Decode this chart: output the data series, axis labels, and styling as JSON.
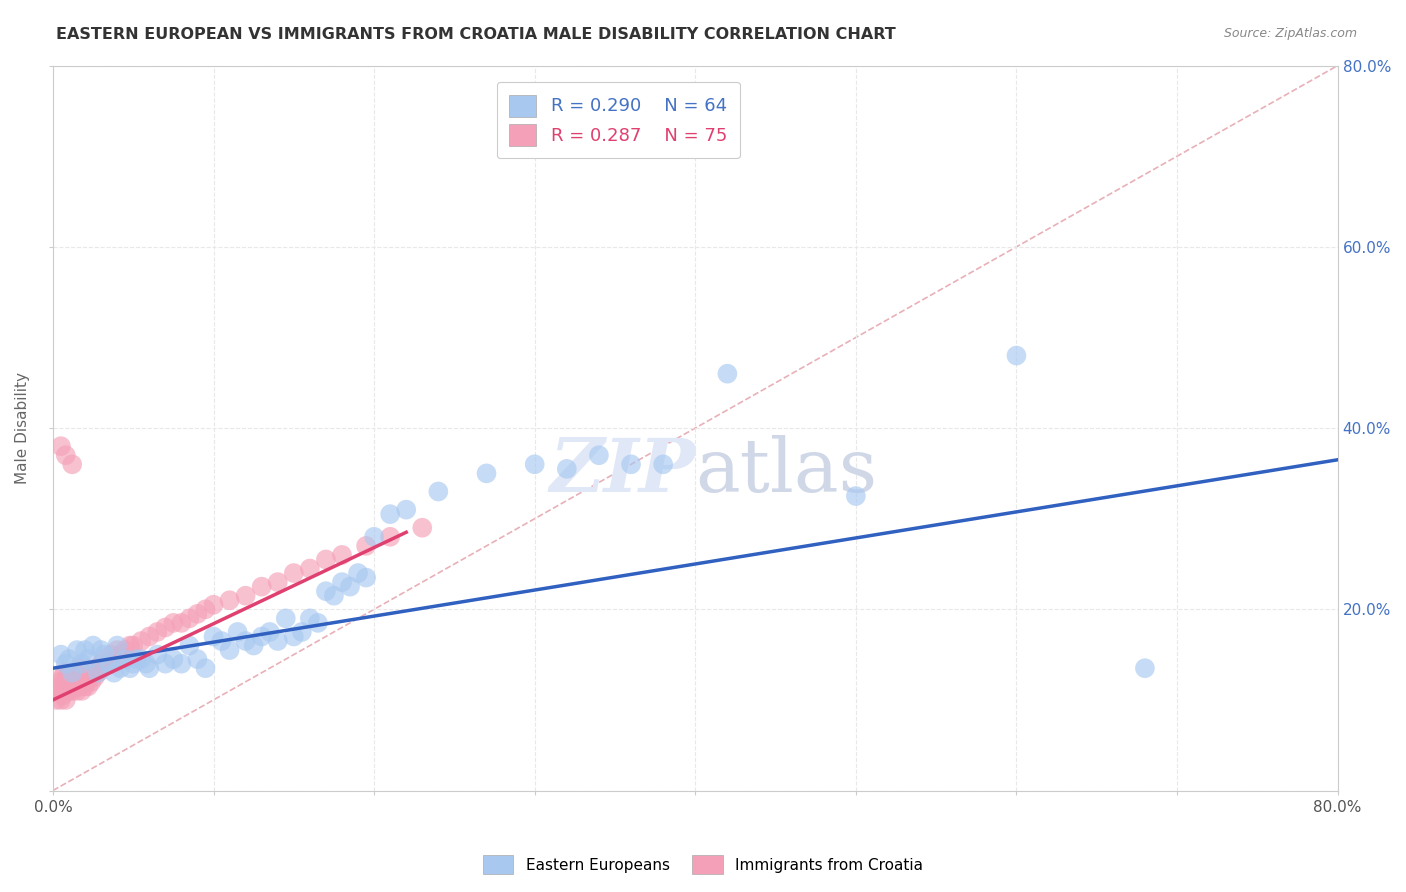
{
  "title": "EASTERN EUROPEAN VS IMMIGRANTS FROM CROATIA MALE DISABILITY CORRELATION CHART",
  "source": "Source: ZipAtlas.com",
  "ylabel": "Male Disability",
  "xlim": [
    0.0,
    0.8
  ],
  "ylim": [
    0.0,
    0.8
  ],
  "legend_blue_r": "R = 0.290",
  "legend_blue_n": "N = 64",
  "legend_pink_r": "R = 0.287",
  "legend_pink_n": "N = 75",
  "blue_color": "#a8c8f0",
  "pink_color": "#f4a0b8",
  "blue_line_color": "#3060c0",
  "pink_line_color": "#e04070",
  "ref_line_color": "#d0a0a8",
  "background_color": "#ffffff",
  "grid_color": "#e8e8e8",
  "blue_scatter_x": [
    0.005,
    0.008,
    0.01,
    0.012,
    0.015,
    0.018,
    0.02,
    0.022,
    0.025,
    0.028,
    0.03,
    0.032,
    0.035,
    0.038,
    0.04,
    0.042,
    0.045,
    0.048,
    0.05,
    0.052,
    0.055,
    0.058,
    0.06,
    0.065,
    0.07,
    0.075,
    0.08,
    0.085,
    0.09,
    0.095,
    0.1,
    0.105,
    0.11,
    0.115,
    0.12,
    0.125,
    0.13,
    0.135,
    0.14,
    0.145,
    0.15,
    0.155,
    0.16,
    0.165,
    0.17,
    0.175,
    0.18,
    0.185,
    0.19,
    0.195,
    0.2,
    0.21,
    0.22,
    0.24,
    0.27,
    0.3,
    0.32,
    0.34,
    0.36,
    0.38,
    0.42,
    0.5,
    0.6,
    0.68
  ],
  "blue_scatter_y": [
    0.15,
    0.14,
    0.145,
    0.13,
    0.155,
    0.14,
    0.155,
    0.145,
    0.16,
    0.13,
    0.155,
    0.15,
    0.14,
    0.13,
    0.16,
    0.135,
    0.145,
    0.135,
    0.14,
    0.145,
    0.145,
    0.14,
    0.135,
    0.15,
    0.14,
    0.145,
    0.14,
    0.16,
    0.145,
    0.135,
    0.17,
    0.165,
    0.155,
    0.175,
    0.165,
    0.16,
    0.17,
    0.175,
    0.165,
    0.19,
    0.17,
    0.175,
    0.19,
    0.185,
    0.22,
    0.215,
    0.23,
    0.225,
    0.24,
    0.235,
    0.28,
    0.305,
    0.31,
    0.33,
    0.35,
    0.36,
    0.355,
    0.37,
    0.36,
    0.36,
    0.46,
    0.325,
    0.48,
    0.135
  ],
  "pink_scatter_x": [
    0.002,
    0.003,
    0.004,
    0.005,
    0.005,
    0.006,
    0.006,
    0.007,
    0.007,
    0.008,
    0.008,
    0.009,
    0.009,
    0.01,
    0.01,
    0.011,
    0.011,
    0.012,
    0.012,
    0.013,
    0.013,
    0.014,
    0.014,
    0.015,
    0.015,
    0.016,
    0.016,
    0.017,
    0.018,
    0.018,
    0.019,
    0.02,
    0.02,
    0.021,
    0.022,
    0.023,
    0.024,
    0.025,
    0.026,
    0.027,
    0.028,
    0.03,
    0.032,
    0.034,
    0.036,
    0.038,
    0.04,
    0.042,
    0.045,
    0.048,
    0.05,
    0.055,
    0.06,
    0.065,
    0.07,
    0.075,
    0.08,
    0.085,
    0.09,
    0.095,
    0.1,
    0.11,
    0.12,
    0.13,
    0.14,
    0.15,
    0.16,
    0.17,
    0.18,
    0.195,
    0.21,
    0.23,
    0.005,
    0.008,
    0.012
  ],
  "pink_scatter_y": [
    0.1,
    0.11,
    0.115,
    0.1,
    0.12,
    0.105,
    0.125,
    0.11,
    0.13,
    0.1,
    0.115,
    0.12,
    0.125,
    0.11,
    0.13,
    0.115,
    0.125,
    0.11,
    0.13,
    0.12,
    0.13,
    0.115,
    0.125,
    0.11,
    0.13,
    0.12,
    0.135,
    0.115,
    0.11,
    0.13,
    0.125,
    0.115,
    0.135,
    0.12,
    0.115,
    0.125,
    0.12,
    0.13,
    0.125,
    0.135,
    0.13,
    0.14,
    0.145,
    0.14,
    0.15,
    0.145,
    0.155,
    0.15,
    0.155,
    0.16,
    0.16,
    0.165,
    0.17,
    0.175,
    0.18,
    0.185,
    0.185,
    0.19,
    0.195,
    0.2,
    0.205,
    0.21,
    0.215,
    0.225,
    0.23,
    0.24,
    0.245,
    0.255,
    0.26,
    0.27,
    0.28,
    0.29,
    0.38,
    0.37,
    0.36
  ]
}
